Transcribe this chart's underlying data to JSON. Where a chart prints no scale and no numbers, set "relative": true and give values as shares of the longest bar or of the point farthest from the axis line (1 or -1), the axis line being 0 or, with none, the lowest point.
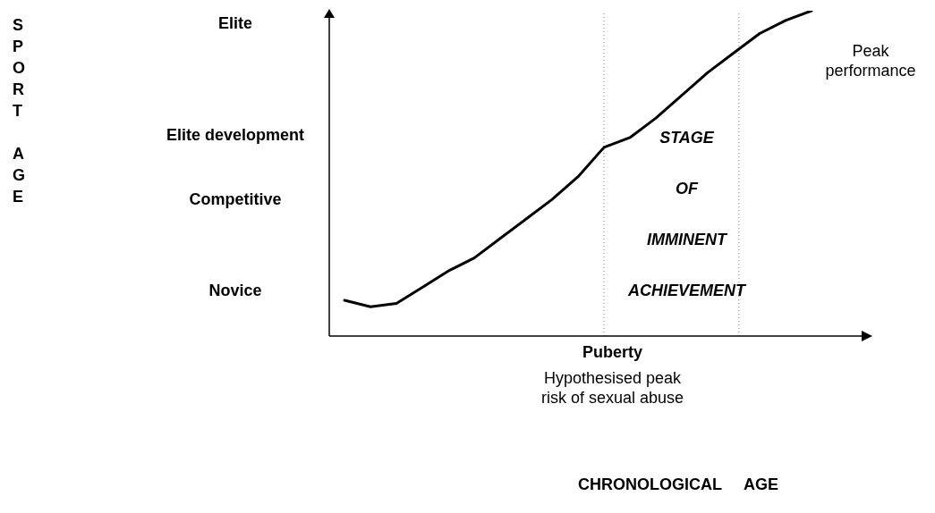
{
  "chart_data": {
    "type": "line",
    "relative": true,
    "ylabel": "SPORT AGE",
    "categories": [
      null,
      null,
      null,
      null,
      null,
      null,
      null,
      null,
      null,
      null,
      null,
      null,
      null,
      null,
      null,
      null,
      null,
      null,
      null
    ],
    "series": [
      {
        "color": "#000000",
        "values": [
          0.11,
          0.09,
          0.1,
          0.15,
          0.2,
          0.24,
          0.3,
          0.36,
          0.42,
          0.49,
          0.58,
          0.61,
          0.67,
          0.74,
          0.81,
          0.87,
          0.93,
          0.97,
          1.0
        ]
      }
    ],
    "annotations": [
      "STAGE OF IMMINENT ACHIEVEMENT",
      "Peak performance",
      "Hypothesised peak risk of sexual abuse",
      "Novice",
      "Competitive",
      "Elite development",
      "Elite",
      "Puberty",
      "CHRONOLOGICAL     AGE"
    ],
    "marker": "none",
    "line_style": "solid"
  }
}
